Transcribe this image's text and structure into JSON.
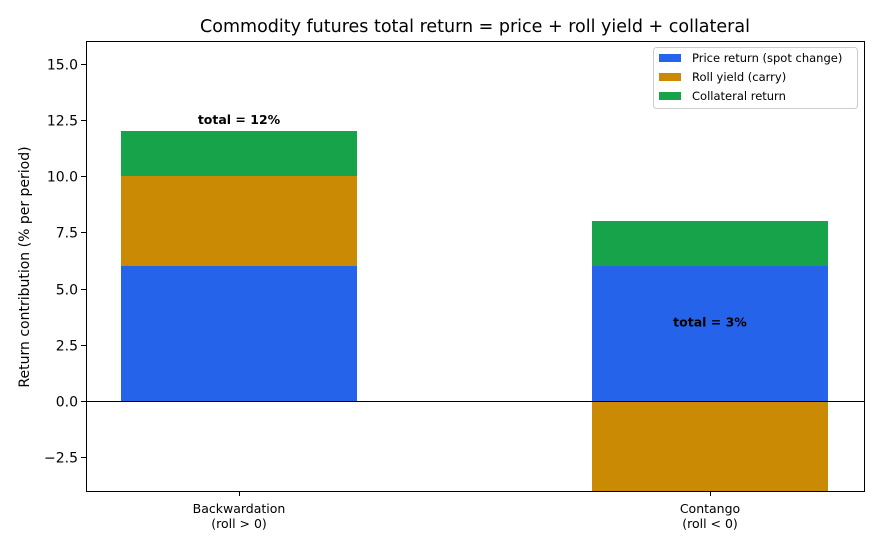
{
  "chart_data": {
    "type": "bar",
    "stacked": true,
    "title": "Commodity futures total return = price + roll yield + collateral",
    "xlabel": "",
    "ylabel": "Return contribution (% per period)",
    "categories": [
      [
        "Backwardation",
        "(roll > 0)"
      ],
      [
        "Contango",
        "(roll < 0)"
      ]
    ],
    "series": [
      {
        "name": "Price return (spot change)",
        "color": "#2563eb",
        "values": [
          6,
          6
        ]
      },
      {
        "name": "Roll yield (carry)",
        "color": "#ca8a04",
        "values": [
          4,
          -5
        ]
      },
      {
        "name": "Collateral return",
        "color": "#16a34a",
        "values": [
          2,
          2
        ]
      }
    ],
    "totals": [
      12,
      3
    ],
    "total_labels": [
      "total = 12%",
      "total = 3%"
    ],
    "ylim": [
      -4,
      16
    ],
    "yticks": [
      "-2.5",
      "0.0",
      "2.5",
      "5.0",
      "7.5",
      "10.0",
      "12.5",
      "15.0"
    ],
    "ytick_values": [
      -2.5,
      0,
      2.5,
      5,
      7.5,
      10,
      12.5,
      15
    ],
    "zero_line": true,
    "grid": false,
    "legend_position": "top-right"
  }
}
